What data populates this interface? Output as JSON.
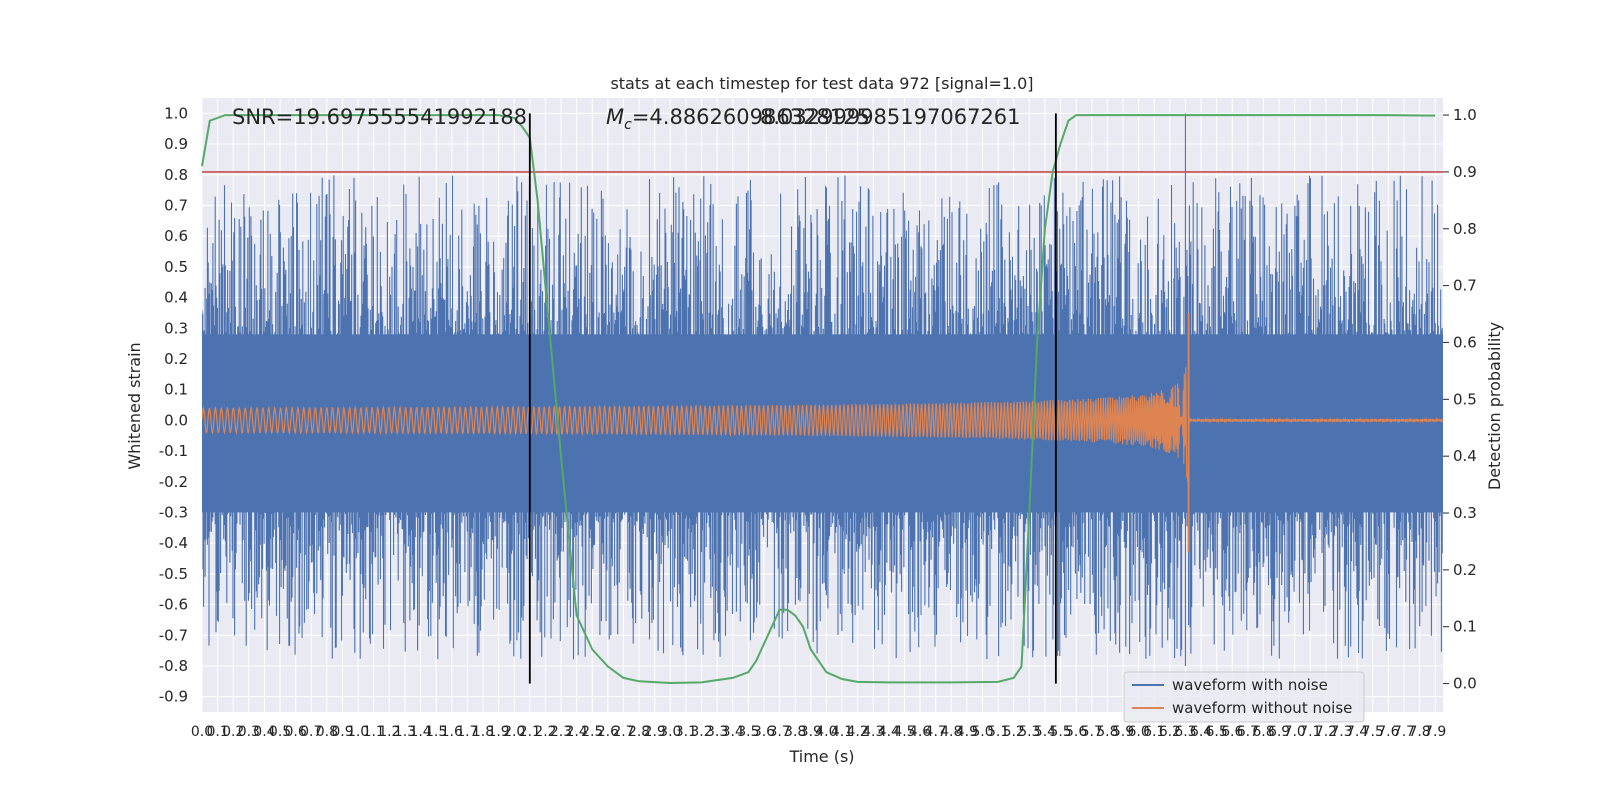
{
  "chart_data": {
    "type": "line",
    "title": "stats at each timestep for test data 972 [signal=1.0]",
    "xlabel": "Time (s)",
    "ylabel": "Whitened strain",
    "y2label": "Detection probability",
    "xlim": [
      0.0,
      7.95
    ],
    "ylim": [
      -0.95,
      1.05
    ],
    "y2lim": [
      -0.05,
      1.03
    ],
    "x_ticks": [
      0.0,
      0.1,
      0.2,
      0.3,
      0.4,
      0.5,
      0.6,
      0.7,
      0.8,
      0.9,
      1.0,
      1.1,
      1.2,
      1.3,
      1.4,
      1.5,
      1.6,
      1.7,
      1.8,
      1.9,
      2.0,
      2.1,
      2.2,
      2.3,
      2.4,
      2.5,
      2.6,
      2.7,
      2.8,
      2.9,
      3.0,
      3.1,
      3.2,
      3.3,
      3.4,
      3.5,
      3.6,
      3.7,
      3.8,
      3.9,
      4.0,
      4.1,
      4.2,
      4.3,
      4.4,
      4.5,
      4.6,
      4.7,
      4.8,
      4.9,
      5.0,
      5.1,
      5.2,
      5.3,
      5.4,
      5.5,
      5.6,
      5.7,
      5.8,
      5.9,
      6.0,
      6.1,
      6.2,
      6.3,
      6.4,
      6.5,
      6.6,
      6.7,
      6.8,
      6.9,
      7.0,
      7.1,
      7.2,
      7.3,
      7.4,
      7.5,
      7.6,
      7.7,
      7.8,
      7.9
    ],
    "y_ticks": [
      1.0,
      0.9,
      0.8,
      0.7,
      0.6,
      0.5,
      0.4,
      0.3,
      0.2,
      0.1,
      0.0,
      -0.1,
      -0.2,
      -0.3,
      -0.4,
      -0.5,
      -0.6,
      -0.7,
      -0.8,
      -0.9
    ],
    "y2_ticks": [
      1.0,
      0.9,
      0.8,
      0.7,
      0.6,
      0.5,
      0.4,
      0.3,
      0.2,
      0.1,
      0.0
    ],
    "annotations": {
      "snr": "SNR=19.697555541992188",
      "mc": "=4.886260986328125",
      "mc_symbol": "M",
      "mc_sub": "c",
      "overlap": "8.032999985197067261"
    },
    "threshold_y2": 0.9,
    "threshold_color": "#c44e52",
    "vertical_lines_x": [
      2.1,
      5.47
    ],
    "series": [
      {
        "name": "waveform with noise",
        "color": "#4c72b0",
        "envelope_low": [
          -0.3,
          -0.45,
          -0.6,
          -0.7,
          -0.82
        ],
        "envelope_high": [
          0.5,
          0.6,
          0.65,
          0.7,
          0.8
        ],
        "spike_peak": {
          "x": 6.3,
          "y": 1.0,
          "y_min": -0.8
        }
      },
      {
        "name": "waveform without noise",
        "color": "#dd8452",
        "chirp_start_amp": 0.04,
        "merger_x": 6.32,
        "merger_peak": 0.35,
        "merger_trough": -0.43,
        "post_merger_amp": 0.004
      },
      {
        "name": "detection probability",
        "color": "#55a868",
        "x": [
          0.0,
          0.05,
          0.15,
          0.3,
          0.6,
          1.0,
          1.5,
          1.9,
          2.0,
          2.05,
          2.1,
          2.15,
          2.2,
          2.3,
          2.4,
          2.5,
          2.6,
          2.7,
          2.8,
          3.0,
          3.2,
          3.4,
          3.5,
          3.55,
          3.6,
          3.65,
          3.7,
          3.75,
          3.8,
          3.85,
          3.9,
          4.0,
          4.1,
          4.2,
          4.4,
          4.8,
          5.1,
          5.2,
          5.25,
          5.3,
          5.35,
          5.4,
          5.45,
          5.5,
          5.55,
          5.6,
          5.65,
          5.7,
          5.8,
          6.0,
          6.5,
          7.0,
          7.5,
          7.9
        ],
        "y": [
          0.91,
          0.99,
          1.0,
          1.0,
          1.0,
          1.0,
          1.0,
          1.0,
          0.995,
          0.98,
          0.96,
          0.85,
          0.7,
          0.4,
          0.12,
          0.06,
          0.03,
          0.01,
          0.004,
          0.001,
          0.002,
          0.01,
          0.02,
          0.04,
          0.07,
          0.1,
          0.13,
          0.13,
          0.12,
          0.1,
          0.06,
          0.02,
          0.008,
          0.003,
          0.002,
          0.002,
          0.003,
          0.01,
          0.03,
          0.3,
          0.6,
          0.8,
          0.9,
          0.95,
          0.99,
          1.0,
          1.0,
          1.0,
          1.0,
          1.0,
          1.0,
          1.0,
          1.0,
          0.999
        ]
      }
    ],
    "legend": {
      "position": "lower-right",
      "items": [
        "waveform with noise",
        "waveform without noise"
      ]
    },
    "grid": true
  }
}
